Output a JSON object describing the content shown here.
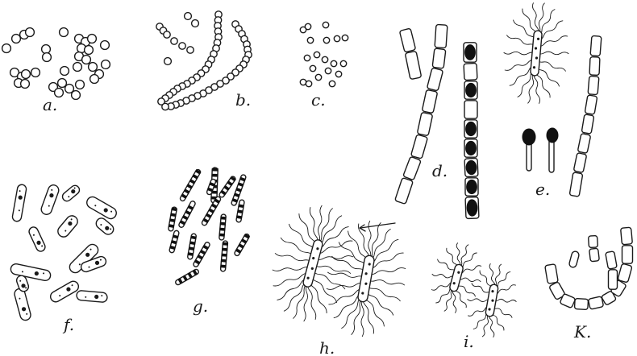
{
  "figure": {
    "panels": [
      {
        "id": "a",
        "label": "a."
      },
      {
        "id": "b",
        "label": "b."
      },
      {
        "id": "c",
        "label": "c."
      },
      {
        "id": "d",
        "label": "d."
      },
      {
        "id": "e",
        "label": "e."
      },
      {
        "id": "f",
        "label": "f."
      },
      {
        "id": "g",
        "label": "g."
      },
      {
        "id": "h",
        "label": "h."
      },
      {
        "id": "i",
        "label": "i."
      },
      {
        "id": "k",
        "label": "K."
      }
    ]
  },
  "colors": {
    "ink": "#1a1a1a",
    "paper": "#ffffff"
  }
}
